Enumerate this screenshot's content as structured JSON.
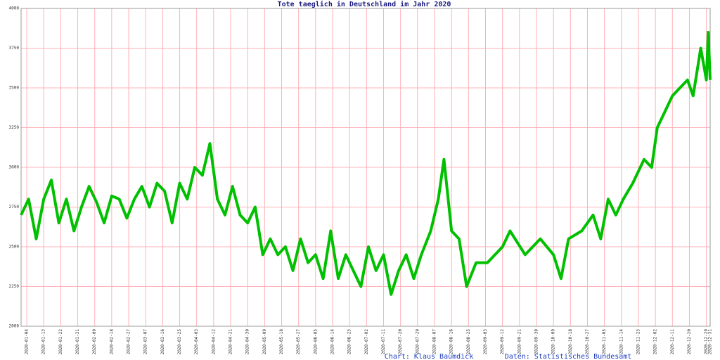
{
  "chart_data": {
    "type": "line",
    "title": "Tote taeglich in Deutschland im Jahr 2020",
    "footer_credit": "Chart: Klaus Baumdick",
    "footer_source": "Daten: Statistisches Bundesamt",
    "color": "#00c000",
    "grid": true,
    "grid_color": "#ffb0b8",
    "x": [
      "2020-01-01",
      "2020-01-05",
      "2020-01-09",
      "2020-01-13",
      "2020-01-17",
      "2020-01-21",
      "2020-01-25",
      "2020-01-29",
      "2020-02-02",
      "2020-02-06",
      "2020-02-10",
      "2020-02-14",
      "2020-02-18",
      "2020-02-22",
      "2020-02-26",
      "2020-03-01",
      "2020-03-05",
      "2020-03-09",
      "2020-03-13",
      "2020-03-17",
      "2020-03-21",
      "2020-03-25",
      "2020-03-29",
      "2020-04-02",
      "2020-04-06",
      "2020-04-10",
      "2020-04-14",
      "2020-04-18",
      "2020-04-22",
      "2020-04-26",
      "2020-04-30",
      "2020-05-04",
      "2020-05-08",
      "2020-05-12",
      "2020-05-16",
      "2020-05-20",
      "2020-05-24",
      "2020-05-28",
      "2020-06-01",
      "2020-06-05",
      "2020-06-09",
      "2020-06-13",
      "2020-06-17",
      "2020-06-21",
      "2020-06-25",
      "2020-06-29",
      "2020-07-03",
      "2020-07-07",
      "2020-07-11",
      "2020-07-15",
      "2020-07-19",
      "2020-07-23",
      "2020-07-27",
      "2020-07-31",
      "2020-08-05",
      "2020-08-09",
      "2020-08-12",
      "2020-08-16",
      "2020-08-20",
      "2020-08-24",
      "2020-08-29",
      "2020-09-04",
      "2020-09-12",
      "2020-09-16",
      "2020-09-24",
      "2020-10-02",
      "2020-10-09",
      "2020-10-13",
      "2020-10-17",
      "2020-10-24",
      "2020-10-30",
      "2020-11-03",
      "2020-11-07",
      "2020-11-11",
      "2020-11-15",
      "2020-11-20",
      "2020-11-26",
      "2020-11-30",
      "2020-12-03",
      "2020-12-07",
      "2020-12-11",
      "2020-12-15",
      "2020-12-19",
      "2020-12-22",
      "2020-12-26",
      "2020-12-29",
      "2020-12-30",
      "2020-12-31"
    ],
    "values": [
      2700,
      2800,
      2550,
      2800,
      2920,
      2650,
      2800,
      2600,
      2750,
      2880,
      2780,
      2650,
      2820,
      2800,
      2680,
      2800,
      2880,
      2750,
      2900,
      2850,
      2650,
      2900,
      2800,
      3000,
      2950,
      3150,
      2800,
      2700,
      2880,
      2700,
      2650,
      2750,
      2450,
      2550,
      2450,
      2500,
      2350,
      2550,
      2400,
      2450,
      2300,
      2600,
      2300,
      2450,
      2350,
      2250,
      2500,
      2350,
      2450,
      2200,
      2350,
      2450,
      2300,
      2450,
      2600,
      2800,
      3050,
      2600,
      2550,
      2250,
      2400,
      2400,
      2500,
      2600,
      2450,
      2550,
      2450,
      2300,
      2550,
      2600,
      2700,
      2550,
      2800,
      2700,
      2800,
      2900,
      3050,
      3000,
      3250,
      3350,
      3450,
      3500,
      3550,
      3450,
      3750,
      3550,
      3850,
      3550
    ],
    "xlim": [
      "2020-01-01",
      "2020-12-31"
    ],
    "xticks": [
      "2020-01-04",
      "2020-01-13",
      "2020-01-22",
      "2020-01-31",
      "2020-02-09",
      "2020-02-18",
      "2020-02-27",
      "2020-03-07",
      "2020-03-16",
      "2020-03-25",
      "2020-04-03",
      "2020-04-12",
      "2020-04-21",
      "2020-04-30",
      "2020-05-09",
      "2020-05-18",
      "2020-05-27",
      "2020-06-05",
      "2020-06-14",
      "2020-06-23",
      "2020-07-02",
      "2020-07-11",
      "2020-07-20",
      "2020-07-29",
      "2020-08-07",
      "2020-08-16",
      "2020-08-25",
      "2020-09-03",
      "2020-09-12",
      "2020-09-21",
      "2020-09-30",
      "2020-10-09",
      "2020-10-18",
      "2020-10-27",
      "2020-11-05",
      "2020-11-14",
      "2020-11-23",
      "2020-12-02",
      "2020-12-11",
      "2020-12-20",
      "2020-12-29",
      "2020-12-31"
    ],
    "ylim": [
      2000,
      4000
    ],
    "yticks": [
      2000,
      2250,
      2500,
      2750,
      3000,
      3250,
      3500,
      3750,
      4000
    ]
  }
}
